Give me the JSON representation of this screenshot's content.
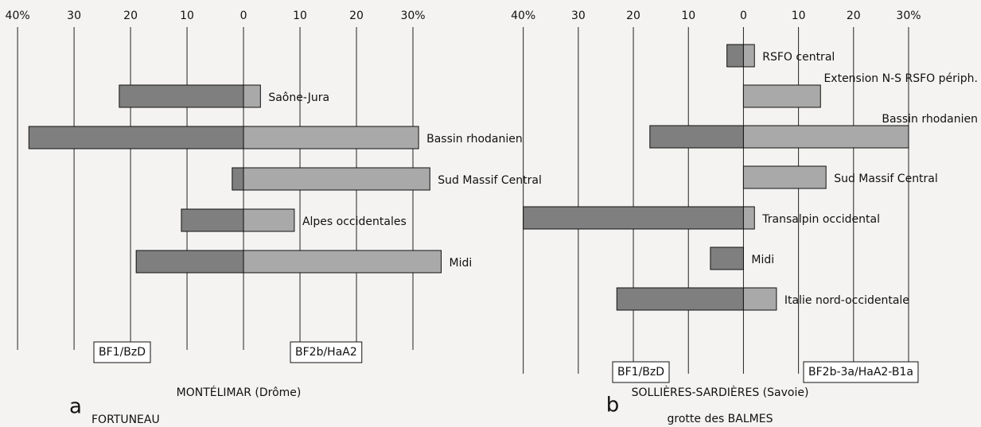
{
  "chart_data": [
    {
      "type": "diverging_bar",
      "panel": "a",
      "title": "MONTÉLIMAR (Drôme)",
      "subtitle": "FORTUNEAU",
      "categories": [
        "Saône-Jura",
        "Bassin rhodanien",
        "Sud Massif Central",
        "Alpes occidentales",
        "Midi"
      ],
      "series": [
        {
          "name": "BF1/BzD",
          "color": "#7f7f7f",
          "values": [
            -22,
            -38,
            -2,
            -11,
            -19
          ]
        },
        {
          "name": "BF2b/HaA2",
          "color": "#a9a9a9",
          "values": [
            3,
            31,
            33,
            9,
            35
          ]
        }
      ],
      "xlim": [
        -41,
        40
      ],
      "xticks": [
        {
          "value": -40,
          "label": "40%"
        },
        {
          "value": -30,
          "label": "30"
        },
        {
          "value": -20,
          "label": "20"
        },
        {
          "value": -10,
          "label": "10"
        },
        0,
        10,
        20,
        {
          "value": 30,
          "label": "30%"
        }
      ],
      "grid": true
    },
    {
      "type": "diverging_bar",
      "panel": "b",
      "title": "SOLLIÈRES-SARDIÈRES (Savoie)",
      "subtitle": "grotte des BALMES",
      "categories": [
        "RSFO central",
        "Extension N-S RSFO périph.",
        "Bassin rhodanien",
        "Sud Massif Central",
        "Transalpin occidental",
        "Midi",
        "Italie nord-occidentale"
      ],
      "series": [
        {
          "name": "BF1/BzD",
          "color": "#7f7f7f",
          "values": [
            -3,
            0,
            -17,
            0,
            -40,
            -6,
            -23
          ]
        },
        {
          "name": "BF2b-3a/HaA2-B1a",
          "color": "#a9a9a9",
          "values": [
            2,
            14,
            30,
            15,
            2,
            0,
            6
          ]
        }
      ],
      "xlim": [
        -44,
        42
      ],
      "xticks": [
        {
          "value": -40,
          "label": "40%"
        },
        {
          "value": -30,
          "label": "30"
        },
        {
          "value": -20,
          "label": "20"
        },
        {
          "value": -10,
          "label": "10"
        },
        0,
        10,
        20,
        {
          "value": 30,
          "label": "30%"
        }
      ],
      "grid": true
    }
  ]
}
